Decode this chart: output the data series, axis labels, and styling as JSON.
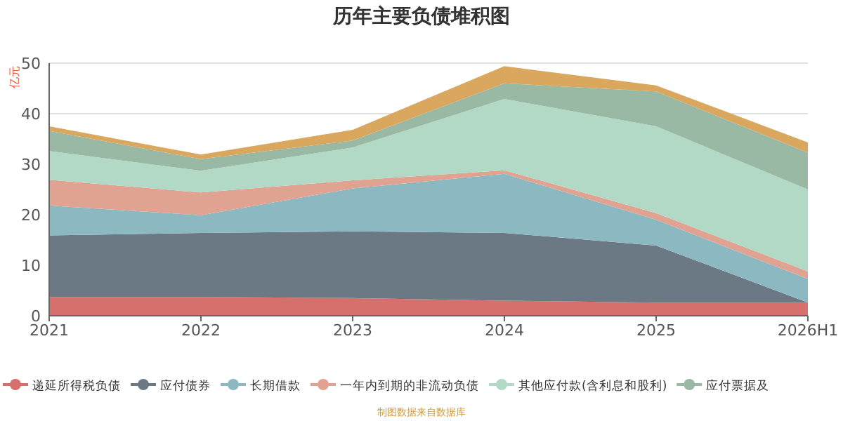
{
  "chart_data": {
    "type": "area",
    "title": "历年主要负债堆积图",
    "ylabel": "亿元",
    "stacked": true,
    "categories": [
      "2021",
      "2022",
      "2023",
      "2024",
      "2025",
      "2026H1"
    ],
    "ylim": [
      0,
      50
    ],
    "yticks": [
      0,
      10,
      20,
      30,
      40,
      50
    ],
    "grid": "y",
    "legend": "bottom",
    "series": [
      {
        "name": "递延所得税负债",
        "color": "#d5706d",
        "values": [
          3.7,
          3.7,
          3.5,
          3.0,
          2.6,
          2.6
        ]
      },
      {
        "name": "应付债券",
        "color": "#6b7985",
        "values": [
          12.2,
          12.7,
          13.2,
          13.4,
          11.3,
          0
        ]
      },
      {
        "name": "长期借款",
        "color": "#8cb9c1",
        "values": [
          5.9,
          3.5,
          8.5,
          11.7,
          5.1,
          4.7
        ]
      },
      {
        "name": "一年内到期的非流动负债",
        "color": "#e0a391",
        "values": [
          5.1,
          4.5,
          1.6,
          0.7,
          1.3,
          1.5
        ]
      },
      {
        "name": "其他应付款(含利息和股利)",
        "color": "#b1d9c6",
        "values": [
          5.7,
          4.3,
          6.5,
          14.1,
          17.2,
          16.2
        ]
      },
      {
        "name": "应付票据及",
        "color": "#9ab9a5",
        "values": [
          4.0,
          2.3,
          1.4,
          3.1,
          6.9,
          7.3
        ]
      },
      {
        "color": "#daa75e",
        "values": [
          0.9,
          0.9,
          2.1,
          3.4,
          1.2,
          2.0
        ]
      }
    ],
    "annotations": [
      "制图数据来自数据库"
    ]
  }
}
